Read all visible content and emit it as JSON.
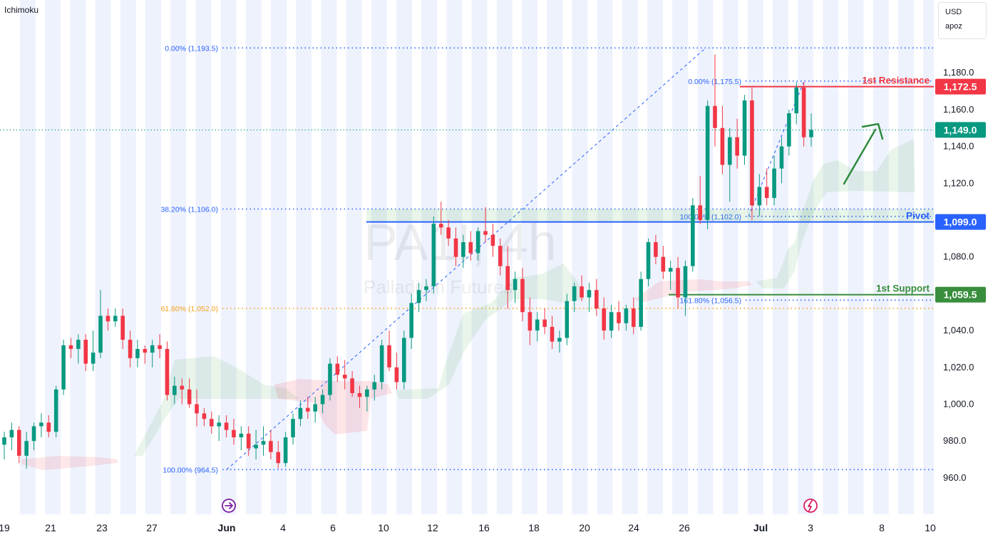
{
  "indicator": "Ichimoku",
  "currency_box": {
    "currency": "USD",
    "unit": "apoz"
  },
  "watermark": {
    "symbol": "PA1!, 4h",
    "name": "Palladium Futures"
  },
  "colors": {
    "up": "#089981",
    "down": "#f23645",
    "fib_blue": "#2962ff",
    "fib_orange": "#f7a21b",
    "resistance": "#f23645",
    "pivot": "#2962ff",
    "support": "#388e3c",
    "arrow": "#2e8b3e"
  },
  "chart_data": {
    "type": "candlestick",
    "y_ticks": [
      960,
      980,
      1000,
      1020,
      1040,
      1060,
      1080,
      1100,
      1120,
      1140,
      1160,
      1180
    ],
    "y_tick_labels": [
      "960.0",
      "980.0",
      "1,000.0",
      "1,020.0",
      "1,040.0",
      "1,060.0",
      "1,080.0",
      "1,100.0",
      "1,120.0",
      "1,140.0",
      "1,160.0",
      "1,180.0"
    ],
    "x_tick_labels": [
      "19",
      "21",
      "23",
      "27",
      "Jun",
      "4",
      "6",
      "10",
      "12",
      "16",
      "18",
      "20",
      "24",
      "26",
      "Jul",
      "3",
      "8",
      "10"
    ],
    "price_labels": [
      {
        "text": "1,172.5",
        "value": 1172.5,
        "color": "#f23645"
      },
      {
        "text": "1,149.0",
        "value": 1149.0,
        "color": "#089981"
      },
      {
        "text": "1,099.0",
        "value": 1099.0,
        "color": "#2962ff"
      },
      {
        "text": "1,059.5",
        "value": 1059.5,
        "color": "#388e3c"
      }
    ],
    "fib_levels_main": [
      {
        "text": "0.00% (1,193.5)",
        "value": 1193.5,
        "color": "#2962ff"
      },
      {
        "text": "38.20% (1,106.0)",
        "value": 1106.0,
        "color": "#2962ff"
      },
      {
        "text": "61.80% (1,052.0)",
        "value": 1052.0,
        "color": "#f7a21b"
      },
      {
        "text": "100.00% (964.5)",
        "value": 964.5,
        "color": "#2962ff"
      }
    ],
    "fib_levels_ext": [
      {
        "text": "0.00% (1,175.5)",
        "value": 1175.5
      },
      {
        "text": "100.00% (1,102.0)",
        "value": 1102.0
      },
      {
        "text": "161.80% (1,056.5)",
        "value": 1056.5
      }
    ],
    "horizontal_lines": [
      {
        "label": "1st Resistance",
        "value": 1172.5
      },
      {
        "label": "Pivot",
        "value": 1099.0
      },
      {
        "label": "1st Support",
        "value": 1059.5
      }
    ],
    "last_price": 1149.0,
    "candles": [
      [
        978,
        985,
        970,
        982
      ],
      [
        982,
        990,
        975,
        986
      ],
      [
        986,
        988,
        968,
        972
      ],
      [
        972,
        985,
        965,
        980
      ],
      [
        980,
        990,
        975,
        988
      ],
      [
        988,
        995,
        982,
        990
      ],
      [
        990,
        994,
        982,
        985
      ],
      [
        985,
        1010,
        982,
        1008
      ],
      [
        1008,
        1035,
        1005,
        1032
      ],
      [
        1032,
        1036,
        1025,
        1030
      ],
      [
        1030,
        1038,
        1022,
        1035
      ],
      [
        1035,
        1038,
        1018,
        1022
      ],
      [
        1022,
        1040,
        1018,
        1028
      ],
      [
        1028,
        1062,
        1025,
        1048
      ],
      [
        1048,
        1052,
        1040,
        1045
      ],
      [
        1045,
        1052,
        1042,
        1048
      ],
      [
        1048,
        1052,
        1030,
        1035
      ],
      [
        1035,
        1040,
        1020,
        1025
      ],
      [
        1025,
        1035,
        1020,
        1030
      ],
      [
        1030,
        1032,
        1022,
        1028
      ],
      [
        1028,
        1035,
        1020,
        1032
      ],
      [
        1032,
        1038,
        1025,
        1030
      ],
      [
        1030,
        1034,
        1002,
        1005
      ],
      [
        1005,
        1015,
        1000,
        1010
      ],
      [
        1010,
        1014,
        1000,
        1008
      ],
      [
        1008,
        1014,
        998,
        1000
      ],
      [
        1000,
        1008,
        988,
        995
      ],
      [
        995,
        998,
        988,
        992
      ],
      [
        992,
        996,
        984,
        988
      ],
      [
        988,
        994,
        980,
        990
      ],
      [
        990,
        994,
        982,
        986
      ],
      [
        986,
        992,
        978,
        982
      ],
      [
        982,
        988,
        975,
        984
      ],
      [
        984,
        988,
        972,
        976
      ],
      [
        976,
        986,
        970,
        978
      ],
      [
        978,
        988,
        972,
        980
      ],
      [
        980,
        986,
        970,
        974
      ],
      [
        974,
        980,
        965,
        968
      ],
      [
        968,
        985,
        966,
        982
      ],
      [
        982,
        995,
        978,
        992
      ],
      [
        992,
        1002,
        988,
        998
      ],
      [
        998,
        1004,
        992,
        996
      ],
      [
        996,
        1004,
        990,
        1000
      ],
      [
        1000,
        1008,
        995,
        1005
      ],
      [
        1005,
        1025,
        1002,
        1022
      ],
      [
        1022,
        1026,
        1012,
        1016
      ],
      [
        1016,
        1024,
        1008,
        1014
      ],
      [
        1014,
        1018,
        1004,
        1006
      ],
      [
        1006,
        1010,
        998,
        1004
      ],
      [
        1004,
        1010,
        996,
        1008
      ],
      [
        1008,
        1016,
        1002,
        1012
      ],
      [
        1012,
        1035,
        1008,
        1032
      ],
      [
        1032,
        1040,
        1018,
        1020
      ],
      [
        1020,
        1028,
        1008,
        1012
      ],
      [
        1012,
        1040,
        1008,
        1036
      ],
      [
        1036,
        1060,
        1030,
        1055
      ],
      [
        1055,
        1066,
        1050,
        1062
      ],
      [
        1062,
        1068,
        1056,
        1064
      ],
      [
        1064,
        1102,
        1060,
        1098
      ],
      [
        1098,
        1110,
        1092,
        1096
      ],
      [
        1096,
        1100,
        1086,
        1090
      ],
      [
        1090,
        1096,
        1075,
        1080
      ],
      [
        1080,
        1092,
        1074,
        1088
      ],
      [
        1088,
        1094,
        1078,
        1082
      ],
      [
        1082,
        1096,
        1078,
        1094
      ],
      [
        1094,
        1107,
        1088,
        1092
      ],
      [
        1092,
        1098,
        1080,
        1086
      ],
      [
        1086,
        1090,
        1070,
        1075
      ],
      [
        1075,
        1086,
        1052,
        1062
      ],
      [
        1062,
        1072,
        1055,
        1068
      ],
      [
        1068,
        1074,
        1045,
        1050
      ],
      [
        1050,
        1058,
        1032,
        1040
      ],
      [
        1040,
        1050,
        1034,
        1046
      ],
      [
        1046,
        1052,
        1038,
        1042
      ],
      [
        1042,
        1048,
        1030,
        1034
      ],
      [
        1034,
        1040,
        1028,
        1036
      ],
      [
        1036,
        1060,
        1032,
        1056
      ],
      [
        1056,
        1066,
        1050,
        1064
      ],
      [
        1064,
        1070,
        1056,
        1058
      ],
      [
        1058,
        1066,
        1050,
        1062
      ],
      [
        1062,
        1068,
        1048,
        1052
      ],
      [
        1052,
        1058,
        1035,
        1040
      ],
      [
        1040,
        1054,
        1036,
        1050
      ],
      [
        1050,
        1056,
        1040,
        1044
      ],
      [
        1044,
        1054,
        1040,
        1052
      ],
      [
        1052,
        1058,
        1038,
        1042
      ],
      [
        1042,
        1072,
        1040,
        1068
      ],
      [
        1068,
        1090,
        1064,
        1088
      ],
      [
        1088,
        1092,
        1076,
        1080
      ],
      [
        1080,
        1086,
        1068,
        1072
      ],
      [
        1072,
        1078,
        1062,
        1074
      ],
      [
        1074,
        1080,
        1052,
        1058
      ],
      [
        1058,
        1078,
        1048,
        1075
      ],
      [
        1075,
        1112,
        1072,
        1108
      ],
      [
        1108,
        1124,
        1098,
        1100
      ],
      [
        1100,
        1165,
        1095,
        1162
      ],
      [
        1162,
        1190,
        1140,
        1150
      ],
      [
        1150,
        1162,
        1125,
        1130
      ],
      [
        1130,
        1150,
        1110,
        1145
      ],
      [
        1145,
        1155,
        1128,
        1135
      ],
      [
        1135,
        1168,
        1130,
        1165
      ],
      [
        1165,
        1172,
        1100,
        1108
      ],
      [
        1108,
        1125,
        1102,
        1118
      ],
      [
        1118,
        1128,
        1108,
        1112
      ],
      [
        1112,
        1135,
        1108,
        1128
      ],
      [
        1128,
        1145,
        1120,
        1140
      ],
      [
        1140,
        1160,
        1135,
        1158
      ],
      [
        1158,
        1175,
        1152,
        1172
      ],
      [
        1172,
        1175,
        1140,
        1145
      ],
      [
        1145,
        1158,
        1140,
        1149
      ]
    ]
  }
}
